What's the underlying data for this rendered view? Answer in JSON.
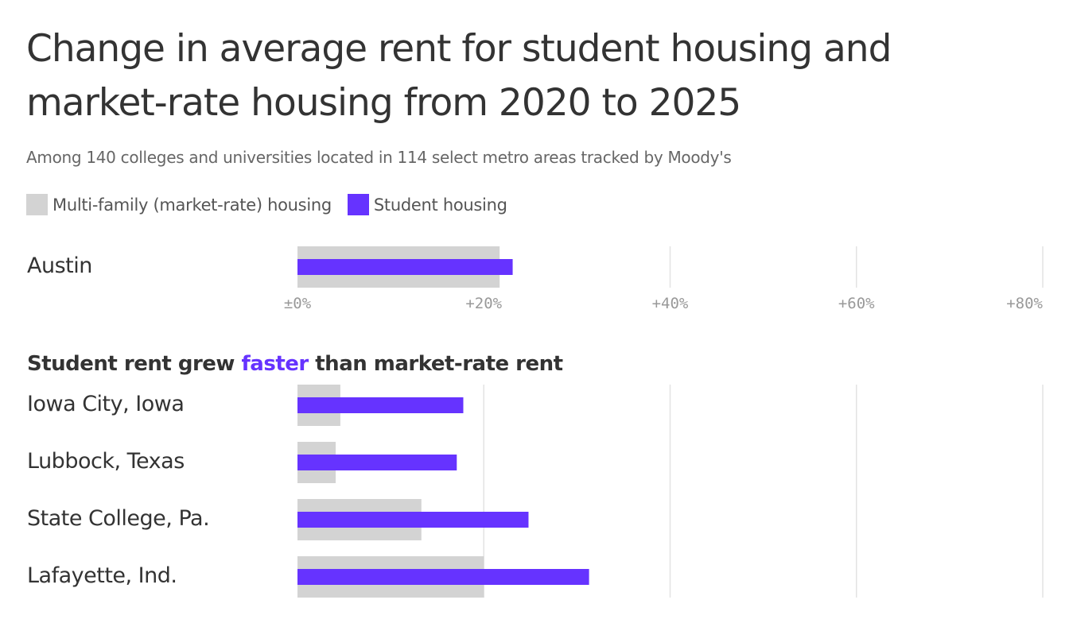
{
  "title": "Change in average rent for student housing and market-rate housing from 2020 to 2025",
  "subtitle": "Among 140 colleges and universities located in 114 select metro areas tracked by Moody's",
  "colors": {
    "market": "#d3d3d3",
    "student": "#6633ff",
    "grid": "#e3e3e3",
    "text": "#333333"
  },
  "chart_data": {
    "type": "bar",
    "orientation": "horizontal",
    "title": "Change in average rent for student housing and market-rate housing from 2020 to 2025",
    "subtitle": "Among 140 colleges and universities located in 114 select metro areas tracked by Moody's",
    "legend": {
      "placement": "top-left",
      "entries": [
        {
          "name": "Multi-family (market-rate) housing",
          "color": "#d3d3d3"
        },
        {
          "name": "Student housing",
          "color": "#6633ff"
        }
      ]
    },
    "xlim": [
      0,
      80
    ],
    "ticks": [
      {
        "value": 0,
        "label": "±0%"
      },
      {
        "value": 20,
        "label": "+20%"
      },
      {
        "value": 40,
        "label": "+40%"
      },
      {
        "value": 60,
        "label": "+60%"
      },
      {
        "value": 80,
        "label": "+80%"
      }
    ],
    "grid": true,
    "series": [
      {
        "name": "Multi-family (market-rate) housing"
      },
      {
        "name": "Student housing"
      }
    ],
    "groups": [
      {
        "heading": null,
        "rows": [
          {
            "category": "Austin",
            "market": 21.7,
            "student": 23.1
          }
        ]
      },
      {
        "heading": {
          "before": "Student rent grew ",
          "highlight": "faster",
          "after": " than market-rate rent"
        },
        "rows": [
          {
            "category": "Iowa City, Iowa",
            "market": 4.6,
            "student": 17.8
          },
          {
            "category": "Lubbock, Texas",
            "market": 4.1,
            "student": 17.1
          },
          {
            "category": "State College, Pa.",
            "market": 13.3,
            "student": 24.8
          },
          {
            "category": "Lafayette, Ind.",
            "market": 20.0,
            "student": 31.3
          }
        ]
      }
    ]
  }
}
